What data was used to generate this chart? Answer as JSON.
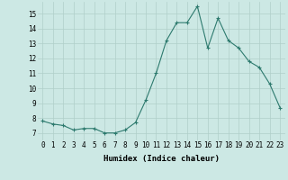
{
  "x": [
    0,
    1,
    2,
    3,
    4,
    5,
    6,
    7,
    8,
    9,
    10,
    11,
    12,
    13,
    14,
    15,
    16,
    17,
    18,
    19,
    20,
    21,
    22,
    23
  ],
  "y": [
    7.8,
    7.6,
    7.5,
    7.2,
    7.3,
    7.3,
    7.0,
    7.0,
    7.2,
    7.7,
    9.2,
    11.0,
    13.2,
    14.4,
    14.4,
    15.5,
    12.7,
    14.7,
    13.2,
    12.7,
    11.8,
    11.4,
    10.3,
    8.7
  ],
  "line_color": "#2d7a6e",
  "marker": "+",
  "marker_size": 3,
  "marker_lw": 0.8,
  "line_width": 0.8,
  "bg_color": "#cce8e4",
  "grid_color": "#b0cfc9",
  "xlabel": "Humidex (Indice chaleur)",
  "ylim": [
    6.5,
    15.8
  ],
  "xlim": [
    -0.5,
    23.5
  ],
  "yticks": [
    7,
    8,
    9,
    10,
    11,
    12,
    13,
    14,
    15
  ],
  "xticks": [
    0,
    1,
    2,
    3,
    4,
    5,
    6,
    7,
    8,
    9,
    10,
    11,
    12,
    13,
    14,
    15,
    16,
    17,
    18,
    19,
    20,
    21,
    22,
    23
  ],
  "xtick_labels": [
    "0",
    "1",
    "2",
    "3",
    "4",
    "5",
    "6",
    "7",
    "8",
    "9",
    "10",
    "11",
    "12",
    "13",
    "14",
    "15",
    "16",
    "17",
    "18",
    "19",
    "20",
    "21",
    "22",
    "23"
  ],
  "tick_fontsize": 5.5,
  "xlabel_fontsize": 6.5
}
